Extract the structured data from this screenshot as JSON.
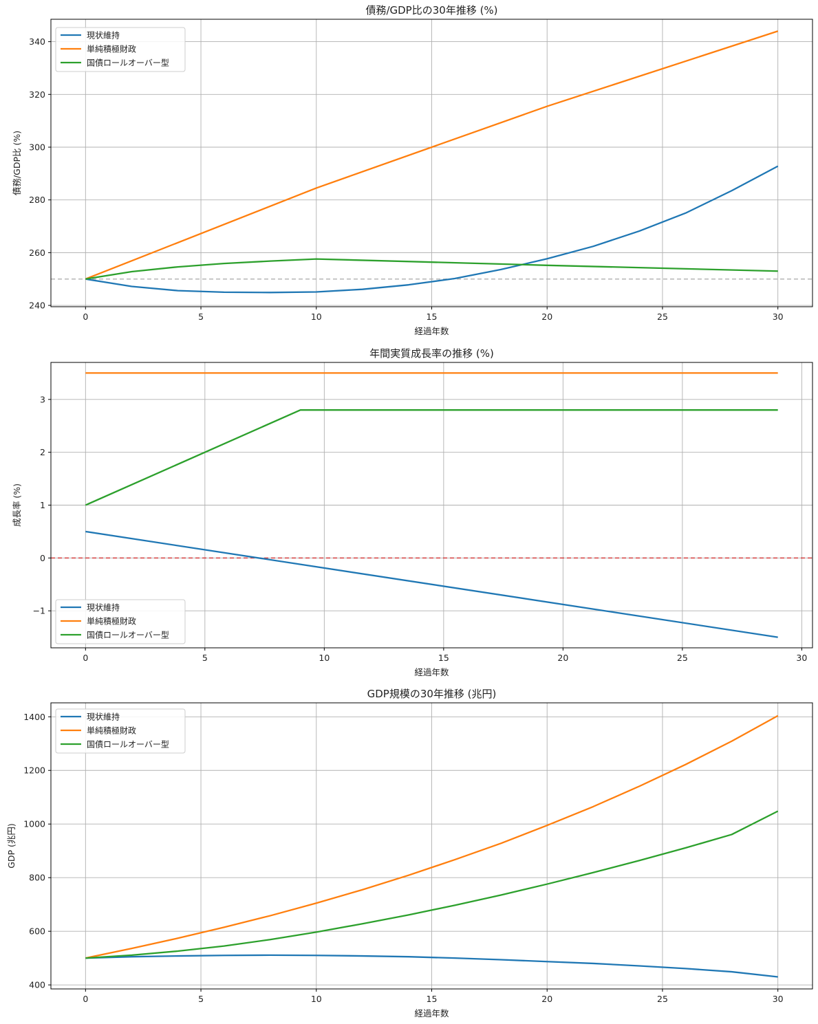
{
  "colors": {
    "blue": "#1f77b4",
    "orange": "#ff7f0e",
    "green": "#2ca02c",
    "grid": "#b0b0b0",
    "ref_gray": "#aaaaaa",
    "ref_red": "#d62728"
  },
  "chart_data": [
    {
      "type": "line",
      "title": "債務/GDP比の30年推移 (%)",
      "xlabel": "経過年数",
      "ylabel": "債務/GDP比 (%)",
      "xlim": [
        -1.5,
        31.5
      ],
      "ylim": [
        239.5,
        348.5
      ],
      "xticks": [
        0,
        5,
        10,
        15,
        20,
        25,
        30
      ],
      "xtick_labels": [
        "0",
        "5",
        "10",
        "15",
        "20",
        "25",
        "30"
      ],
      "yticks": [
        240,
        260,
        280,
        300,
        320,
        340
      ],
      "ytick_labels": [
        "240",
        "260",
        "280",
        "300",
        "320",
        "340"
      ],
      "grid": true,
      "legend_position": "upper-left",
      "reference_line": {
        "y": 250,
        "style": "dashed",
        "color_key": "ref_gray"
      },
      "series": [
        {
          "name": "現状維持",
          "color_key": "blue",
          "x": [
            0,
            2,
            4,
            6,
            8,
            10,
            12,
            14,
            16,
            18,
            20,
            22,
            24,
            26,
            28,
            30
          ],
          "y": [
            250,
            247.2,
            245.6,
            245,
            244.9,
            245.1,
            246.1,
            247.8,
            250.2,
            253.6,
            257.7,
            262.4,
            268.2,
            275,
            283.5,
            292.8
          ]
        },
        {
          "name": "単純積極財政",
          "color_key": "orange",
          "x": [
            0,
            10,
            20,
            30
          ],
          "y": [
            250,
            284.5,
            315.5,
            344
          ]
        },
        {
          "name": "国債ロールオーバー型",
          "color_key": "green",
          "x": [
            0,
            2,
            4,
            6,
            8,
            10,
            15,
            20,
            25,
            30
          ],
          "y": [
            250,
            252.8,
            254.6,
            255.9,
            256.8,
            257.6,
            256.4,
            255.2,
            254.1,
            253
          ]
        }
      ]
    },
    {
      "type": "line",
      "title": "年間実質成長率の推移 (%)",
      "xlabel": "経過年数",
      "ylabel": "成長率 (%)",
      "xlim": [
        -1.45,
        30.45
      ],
      "ylim": [
        -1.7,
        3.7
      ],
      "xticks": [
        0,
        5,
        10,
        15,
        20,
        25,
        30
      ],
      "xtick_labels": [
        "0",
        "5",
        "10",
        "15",
        "20",
        "25",
        "30"
      ],
      "yticks": [
        -1,
        0,
        1,
        2,
        3
      ],
      "ytick_labels": [
        "−1",
        "0",
        "1",
        "2",
        "3"
      ],
      "grid": true,
      "legend_position": "lower-left",
      "reference_line": {
        "y": 0,
        "style": "dashed",
        "color_key": "ref_red"
      },
      "series": [
        {
          "name": "現状維持",
          "color_key": "blue",
          "x": [
            0,
            29
          ],
          "y": [
            0.5,
            -1.5
          ]
        },
        {
          "name": "単純積極財政",
          "color_key": "orange",
          "x": [
            0,
            29
          ],
          "y": [
            3.5,
            3.5
          ]
        },
        {
          "name": "国債ロールオーバー型",
          "color_key": "green",
          "x": [
            0,
            9,
            29
          ],
          "y": [
            1.0,
            2.8,
            2.8
          ]
        }
      ]
    },
    {
      "type": "line",
      "title": "GDP規模の30年推移 (兆円)",
      "xlabel": "経過年数",
      "ylabel": "GDP (兆円)",
      "xlim": [
        -1.5,
        31.5
      ],
      "ylim": [
        385,
        1452
      ],
      "xticks": [
        0,
        5,
        10,
        15,
        20,
        25,
        30
      ],
      "xtick_labels": [
        "0",
        "5",
        "10",
        "15",
        "20",
        "25",
        "30"
      ],
      "yticks": [
        400,
        600,
        800,
        1000,
        1200,
        1400
      ],
      "ytick_labels": [
        "400",
        "600",
        "800",
        "1000",
        "1200",
        "1400"
      ],
      "grid": true,
      "legend_position": "upper-left",
      "series": [
        {
          "name": "現状維持",
          "color_key": "blue",
          "x": [
            0,
            2,
            4,
            6,
            8,
            10,
            12,
            14,
            16,
            18,
            20,
            22,
            24,
            26,
            28,
            30
          ],
          "y": [
            500,
            505,
            508,
            510,
            511,
            510,
            508,
            505,
            500,
            494,
            487,
            480,
            471,
            461,
            449,
            430
          ]
        },
        {
          "name": "単純積極財政",
          "color_key": "orange",
          "x": [
            0,
            2,
            4,
            6,
            8,
            10,
            12,
            14,
            16,
            18,
            20,
            22,
            24,
            26,
            28,
            30
          ],
          "y": [
            500,
            536,
            574,
            615,
            658,
            705,
            755,
            809,
            867,
            928,
            995,
            1065,
            1141,
            1222,
            1309,
            1404
          ]
        },
        {
          "name": "国債ロールオーバー型",
          "color_key": "green",
          "x": [
            0,
            2,
            4,
            6,
            8,
            10,
            12,
            14,
            16,
            18,
            20,
            22,
            24,
            26,
            28,
            30
          ],
          "y": [
            500,
            511,
            526,
            545,
            569,
            597,
            628,
            661,
            697,
            735,
            776,
            819,
            864,
            911,
            961,
            1048
          ]
        }
      ]
    }
  ]
}
